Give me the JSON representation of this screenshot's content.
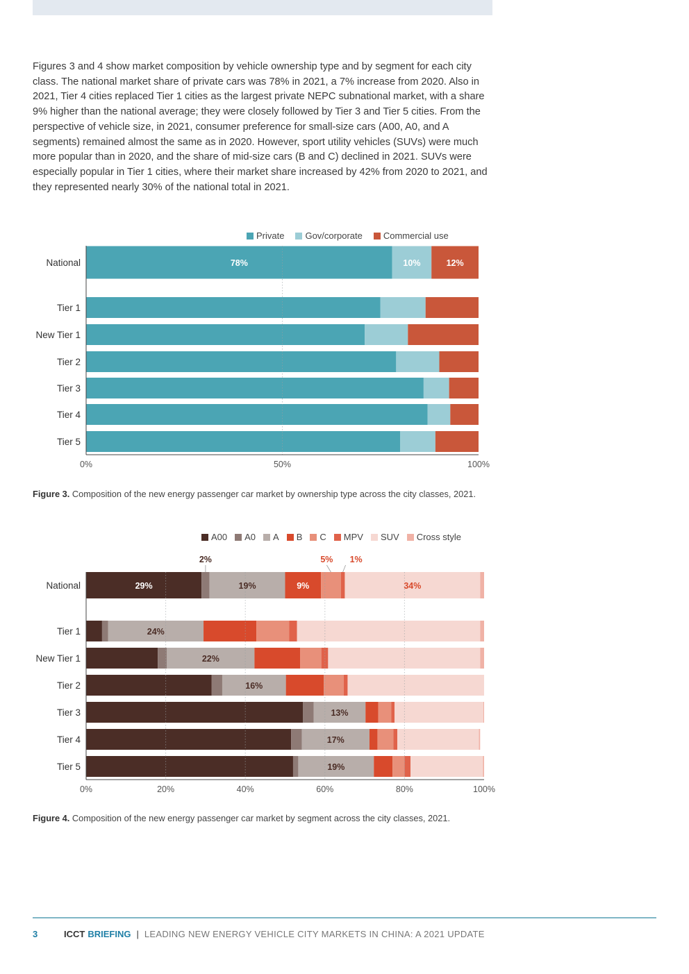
{
  "intro_paragraph": "Figures 3 and 4 show market composition by vehicle ownership type and by segment for each city class. The national market share of private cars was 78% in 2021, a 7% increase from 2020. Also in 2021, Tier 4 cities replaced Tier 1 cities as the largest private NEPC subnational market, with a share 9% higher than the national average; they were closely followed by Tier 3 and Tier 5 cities. From the perspective of vehicle size, in 2021, consumer preference for small-size cars (A00, A0, and A segments) remained almost the same as in 2020. However, sport utility vehicles (SUVs) were much more popular than in 2020, and the share of mid-size cars (B and C) declined in 2021. SUVs were especially popular in Tier 1 cities, where their market share increased by 42% from 2020 to 2021, and they represented nearly 30% of the national total in 2021.",
  "fig3": {
    "caption_label": "Figure 3.",
    "caption_text": " Composition of the new energy passenger car market by ownership type across the city classes, 2021.",
    "legend": [
      {
        "name": "Private",
        "color": "#4ba5b4"
      },
      {
        "name": "Gov/corporate",
        "color": "#9ccdd6"
      },
      {
        "name": "Commercial use",
        "color": "#c9573a"
      }
    ]
  },
  "fig4": {
    "caption_label": "Figure 4.",
    "caption_text": " Composition of the new energy passenger car market by segment across the city classes, 2021.",
    "legend": [
      {
        "name": "A00",
        "color": "#4b2d26"
      },
      {
        "name": "A0",
        "color": "#8e7a75"
      },
      {
        "name": "A",
        "color": "#b8aeaa"
      },
      {
        "name": "B",
        "color": "#d84a2c"
      },
      {
        "name": "C",
        "color": "#e8907a"
      },
      {
        "name": "MPV",
        "color": "#e0624a"
      },
      {
        "name": "SUV",
        "color": "#f6d8d2"
      },
      {
        "name": "Cross style",
        "color": "#f0b2a6"
      }
    ]
  },
  "chart_data": [
    {
      "type": "bar",
      "orientation": "horizontal",
      "stacked": true,
      "categories": [
        "National",
        "Tier 1",
        "New Tier 1",
        "Tier 2",
        "Tier 3",
        "Tier 4",
        "Tier 5"
      ],
      "series": [
        {
          "name": "Private",
          "color": "#4ba5b4",
          "values": [
            78,
            75,
            71,
            79,
            86,
            87,
            80
          ]
        },
        {
          "name": "Gov/corporate",
          "color": "#9ccdd6",
          "values": [
            10,
            11.5,
            11,
            11,
            6.5,
            5.8,
            9
          ]
        },
        {
          "name": "Commercial use",
          "color": "#c9573a",
          "values": [
            12,
            13.5,
            18,
            10,
            7.5,
            7.2,
            11
          ]
        }
      ],
      "data_labels": [
        {
          "category": "National",
          "series": "Private",
          "text": "78%"
        },
        {
          "category": "National",
          "series": "Gov/corporate",
          "text": "10%"
        },
        {
          "category": "National",
          "series": "Commercial use",
          "text": "12%"
        }
      ],
      "xlim": [
        0,
        100
      ],
      "xticks": [
        "0%",
        "50%",
        "100%"
      ],
      "grid": "vertical dotted at 50%",
      "legend_position": "top-right"
    },
    {
      "type": "bar",
      "orientation": "horizontal",
      "stacked": true,
      "categories": [
        "National",
        "Tier 1",
        "New Tier 1",
        "Tier 2",
        "Tier 3",
        "Tier 4",
        "Tier 5"
      ],
      "series": [
        {
          "name": "A00",
          "color": "#4b2d26",
          "values": [
            29,
            4,
            18,
            31.5,
            54.5,
            51.5,
            52
          ]
        },
        {
          "name": "A0",
          "color": "#8e7a75",
          "values": [
            2,
            1.5,
            2.3,
            2.7,
            2.7,
            2.7,
            1.3
          ]
        },
        {
          "name": "A",
          "color": "#b8aeaa",
          "values": [
            19,
            24,
            22,
            16,
            13,
            17,
            19
          ]
        },
        {
          "name": "B",
          "color": "#d84a2c",
          "values": [
            9,
            13.3,
            11.5,
            9.5,
            3.2,
            2,
            4.7
          ]
        },
        {
          "name": "C",
          "color": "#e8907a",
          "values": [
            5,
            8.2,
            5.3,
            5,
            3.3,
            4,
            3
          ]
        },
        {
          "name": "MPV",
          "color": "#e0624a",
          "values": [
            1,
            2,
            1.7,
            1,
            0.8,
            1,
            1.5
          ]
        },
        {
          "name": "SUV",
          "color": "#f6d8d2",
          "values": [
            34,
            46,
            38.2,
            34.3,
            22.3,
            20.5,
            18.2
          ]
        },
        {
          "name": "Cross style",
          "color": "#f0b2a6",
          "values": [
            1,
            1,
            1,
            0,
            0.2,
            0.3,
            0.3
          ]
        }
      ],
      "data_labels": [
        {
          "category": "National",
          "series": "A00",
          "text": "29%"
        },
        {
          "category": "National",
          "series": "A",
          "text": "19%"
        },
        {
          "category": "National",
          "series": "B",
          "text": "9%"
        },
        {
          "category": "National",
          "series": "SUV",
          "text": "34%"
        },
        {
          "category": "Tier 1",
          "series": "A",
          "text": "24%"
        },
        {
          "category": "New Tier 1",
          "series": "A",
          "text": "22%"
        },
        {
          "category": "Tier 2",
          "series": "A",
          "text": "16%"
        },
        {
          "category": "Tier 3",
          "series": "A",
          "text": "13%"
        },
        {
          "category": "Tier 4",
          "series": "A",
          "text": "17%"
        },
        {
          "category": "Tier 5",
          "series": "A",
          "text": "19%"
        }
      ],
      "callouts": [
        {
          "category": "National",
          "series": "A0",
          "text": "2%"
        },
        {
          "category": "National",
          "series": "C",
          "text": "5%"
        },
        {
          "category": "National",
          "series": "MPV",
          "text": "1%"
        }
      ],
      "xlim": [
        0,
        100
      ],
      "xticks": [
        "0%",
        "20%",
        "40%",
        "60%",
        "80%",
        "100%"
      ],
      "grid": "vertical dotted at 20% intervals",
      "legend_position": "top-right"
    }
  ],
  "footer": {
    "page_number": "3",
    "org": "ICCT",
    "doc_type": "BRIEFING",
    "separator": "|",
    "title": "LEADING NEW ENERGY VEHICLE CITY MARKETS IN CHINA: A 2021 UPDATE"
  }
}
